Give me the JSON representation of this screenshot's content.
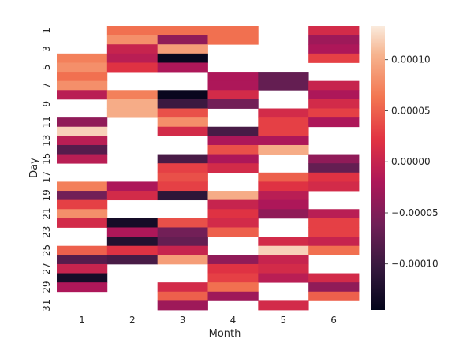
{
  "chart_data": {
    "type": "heatmap",
    "title": "",
    "xlabel": "Month",
    "ylabel": "Day",
    "x_categories": [
      "1",
      "2",
      "3",
      "4",
      "5",
      "6"
    ],
    "y_categories": [
      "1",
      "2",
      "3",
      "4",
      "5",
      "6",
      "7",
      "8",
      "9",
      "10",
      "11",
      "12",
      "13",
      "14",
      "15",
      "16",
      "17",
      "18",
      "19",
      "20",
      "21",
      "22",
      "23",
      "24",
      "25",
      "26",
      "27",
      "28",
      "29",
      "30",
      "31"
    ],
    "x_tick_labels": [
      "1",
      "2",
      "3",
      "4",
      "5",
      "6"
    ],
    "y_tick_labels": [
      "1",
      "3",
      "5",
      "7",
      "9",
      "11",
      "13",
      "15",
      "17",
      "19",
      "21",
      "23",
      "25",
      "27",
      "29",
      "31"
    ],
    "colorbar": {
      "vmin": -0.000145,
      "vmax": 0.000133,
      "ticks": [
        0.0001,
        5e-05,
        0.0,
        -5e-05,
        -0.0001
      ],
      "tick_labels": [
        "0.00010",
        "0.00005",
        "0.00000",
        "−0.00005",
        "−0.00010"
      ],
      "colormap": "rocket"
    },
    "values_note": "null = missing (blank cell)",
    "values": [
      [
        null,
        6e-05,
        6e-05,
        6e-05,
        null,
        1e-05
      ],
      [
        null,
        8e-05,
        -4e-05,
        6e-05,
        null,
        -3e-05
      ],
      [
        null,
        0.0,
        9e-05,
        null,
        null,
        -2e-05
      ],
      [
        7e-05,
        -1e-05,
        -0.00014,
        null,
        null,
        3e-05
      ],
      [
        8e-05,
        2e-05,
        -2e-05,
        null,
        null,
        null
      ],
      [
        6e-05,
        null,
        null,
        -2e-05,
        -7e-05,
        null
      ],
      [
        8e-05,
        null,
        null,
        -2e-05,
        -7e-05,
        0.0
      ],
      [
        -1e-05,
        7e-05,
        -0.00014,
        1e-05,
        null,
        -2e-05
      ],
      [
        null,
        0.0001,
        -0.0001,
        -6e-05,
        null,
        1e-05
      ],
      [
        null,
        0.0001,
        4e-05,
        null,
        1e-05,
        3e-05
      ],
      [
        -4e-05,
        null,
        8e-05,
        null,
        3e-05,
        -2e-05
      ],
      [
        0.00012,
        null,
        1e-05,
        -9e-05,
        3e-05,
        null
      ],
      [
        -1e-05,
        null,
        null,
        -2e-05,
        -2e-05,
        null
      ],
      [
        -8e-05,
        null,
        null,
        4e-05,
        0.0001,
        null
      ],
      [
        -1e-05,
        null,
        -9e-05,
        -2e-05,
        null,
        -4e-05
      ],
      [
        null,
        null,
        3e-05,
        1e-05,
        null,
        -7e-05
      ],
      [
        null,
        null,
        4e-05,
        null,
        5e-05,
        2e-05
      ],
      [
        7e-05,
        -2e-05,
        3e-05,
        null,
        2e-05,
        1e-05
      ],
      [
        -6e-05,
        1e-05,
        -0.00011,
        0.0001,
        -1e-05,
        null
      ],
      [
        3e-05,
        null,
        null,
        0.0,
        -2e-05,
        null
      ],
      [
        8e-05,
        null,
        null,
        2e-05,
        -4e-05,
        -1e-05
      ],
      [
        1e-05,
        -0.00013,
        4e-05,
        1e-05,
        null,
        3e-05
      ],
      [
        null,
        -2e-05,
        -6e-05,
        5e-05,
        null,
        3e-05
      ],
      [
        null,
        -0.00012,
        -7e-05,
        null,
        1e-05,
        0.0
      ],
      [
        5e-05,
        2e-05,
        0.0,
        null,
        0.00012,
        6e-05
      ],
      [
        -8e-05,
        -9e-05,
        9e-05,
        -4e-05,
        0.0,
        null
      ],
      [
        0.0,
        null,
        null,
        2e-05,
        1e-05,
        null
      ],
      [
        -0.00013,
        null,
        null,
        3e-05,
        -1e-05,
        1e-05
      ],
      [
        -2e-05,
        null,
        1e-05,
        6e-05,
        null,
        -4e-05
      ],
      [
        null,
        null,
        5e-05,
        -3e-05,
        null,
        5e-05
      ],
      [
        null,
        null,
        -3e-05,
        null,
        1e-05,
        null
      ]
    ]
  }
}
